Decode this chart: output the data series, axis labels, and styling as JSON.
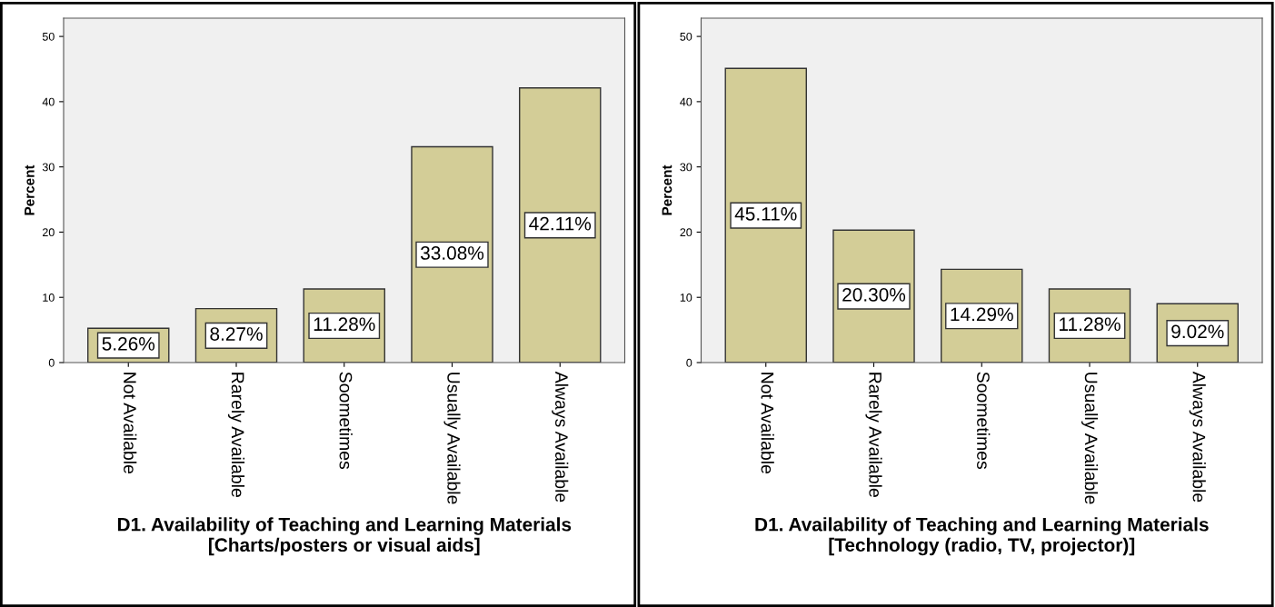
{
  "chart_data": [
    {
      "type": "bar",
      "categories": [
        "Not Available",
        "Rarely Available",
        "Soometimes",
        "Usually Available",
        "Always Available"
      ],
      "values": [
        5.26,
        8.27,
        11.28,
        33.08,
        42.11
      ],
      "value_labels": [
        "5.26%",
        "8.27%",
        "11.28%",
        "33.08%",
        "42.11%"
      ],
      "color": "#d3cd97",
      "ylabel": "Percent",
      "xlabel": "D1. Availability of Teaching and Learning Materials\n[Charts/posters or visual aids]",
      "ylim": [
        0,
        52.8
      ],
      "yticks": [
        0,
        10,
        20,
        30,
        40,
        50
      ],
      "grid": false
    },
    {
      "type": "bar",
      "categories": [
        "Not Available",
        "Rarely Available",
        "Soometimes",
        "Usually Available",
        "Always Available"
      ],
      "values": [
        45.11,
        20.3,
        14.29,
        11.28,
        9.02
      ],
      "value_labels": [
        "45.11%",
        "20.30%",
        "14.29%",
        "11.28%",
        "9.02%"
      ],
      "color": "#d3cd97",
      "ylabel": "Percent",
      "xlabel": "D1. Availability of Teaching and Learning Materials\n[Technology (radio, TV, projector)]",
      "ylim": [
        0,
        52.8
      ],
      "yticks": [
        0,
        10,
        20,
        30,
        40,
        50
      ],
      "grid": false
    }
  ]
}
